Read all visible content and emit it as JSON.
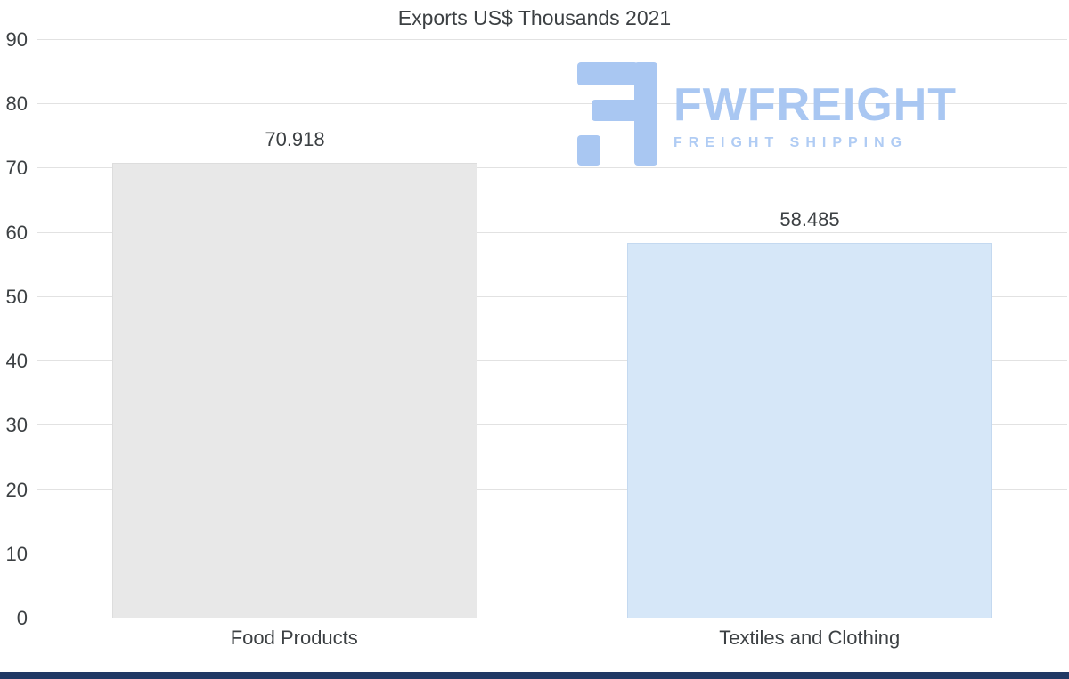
{
  "chart_data": {
    "type": "bar",
    "title": "Exports US$ Thousands 2021",
    "categories": [
      "Food Products",
      "Textiles and Clothing"
    ],
    "values": [
      70.918,
      58.485
    ],
    "value_labels": [
      "70.918",
      "58.485"
    ],
    "xlabel": "",
    "ylabel": "",
    "ylim": [
      0,
      90
    ],
    "yticks": [
      0,
      10,
      20,
      30,
      40,
      50,
      60,
      70,
      80,
      90
    ],
    "grid": true,
    "legend": "none",
    "bar_colors": [
      "#e8e8e8",
      "#d6e7f8"
    ],
    "bar_border_colors": [
      "#dddddd",
      "#c4d9f0"
    ],
    "text_color": "#3c4043",
    "gridline_color": "#e2e2e2",
    "axis_line_color": "#bdbdbd"
  },
  "logo": {
    "text": "FWFREIGHT",
    "subtext": "FREIGHT SHIPPING",
    "color": "#a9c7f2",
    "subtext_color": "#b0ccf4"
  },
  "footer": {
    "color": "#1f3864"
  }
}
